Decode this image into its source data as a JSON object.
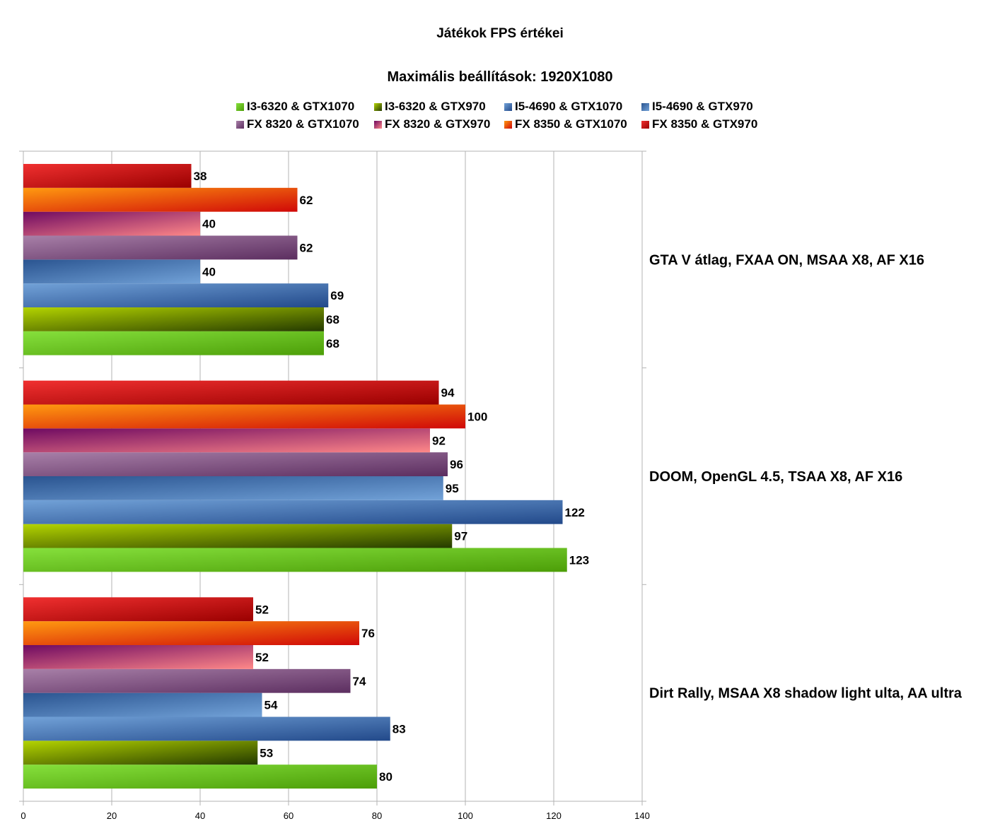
{
  "title": "Játékok FPS értékei",
  "subtitle": "Maximális beállítások: 1920X1080",
  "legend": [
    {
      "label": "I3-6320 & GTX1070",
      "color": "#6cc524"
    },
    {
      "label": "I3-6320 & GTX970",
      "color": "#6a8a00"
    },
    {
      "label": "I5-4690 & GTX1070",
      "color": "#4a78b8"
    },
    {
      "label": "I5-4690 & GTX970",
      "color": "#3c66a8"
    },
    {
      "label": "FX 8320 & GTX1070",
      "color": "#8a5a8a"
    },
    {
      "label": "FX 8320 & GTX970",
      "color": "#c02a6a"
    },
    {
      "label": "FX 8350 & GTX1070",
      "color": "#f06010"
    },
    {
      "label": "FX 8350 & GTX970",
      "color": "#d81818"
    }
  ],
  "chart_data": {
    "type": "bar",
    "orientation": "horizontal",
    "title": "Játékok FPS értékei",
    "subtitle": "Maximális beállítások: 1920X1080",
    "categories": [
      "GTA V átlag, FXAA ON, MSAA X8, AF X16",
      "DOOM, OpenGL 4.5, TSAA X8, AF X16",
      "Dirt Rally, MSAA X8 shadow light ulta, AA ultra"
    ],
    "xlim": [
      0,
      140
    ],
    "xticks": [
      0,
      20,
      40,
      60,
      80,
      100,
      120,
      140
    ],
    "grid": true,
    "legend_position": "top",
    "series": [
      {
        "name": "I3-6320 & GTX1070",
        "values": [
          68,
          123,
          80
        ],
        "colors": [
          "#86e03c",
          "#4c9e08"
        ]
      },
      {
        "name": "I3-6320 & GTX970",
        "values": [
          68,
          97,
          53
        ],
        "colors": [
          "#b4d400",
          "#243a00"
        ]
      },
      {
        "name": "I5-4690 & GTX1070",
        "values": [
          69,
          122,
          83
        ],
        "colors": [
          "#72a2d8",
          "#22498a"
        ]
      },
      {
        "name": "I5-4690 & GTX970",
        "values": [
          40,
          95,
          54
        ],
        "colors": [
          "#2a5490",
          "#72a2d8"
        ]
      },
      {
        "name": "FX 8320 & GTX1070",
        "values": [
          62,
          96,
          74
        ],
        "colors": [
          "#a880a8",
          "#5c2e60"
        ]
      },
      {
        "name": "FX 8320 & GTX970",
        "values": [
          40,
          92,
          52
        ],
        "colors": [
          "#6e0a62",
          "#ff8888"
        ]
      },
      {
        "name": "FX 8350 & GTX1070",
        "values": [
          62,
          100,
          76
        ],
        "colors": [
          "#ff9a10",
          "#d00808"
        ]
      },
      {
        "name": "FX 8350 & GTX970",
        "values": [
          38,
          94,
          52
        ],
        "colors": [
          "#f03030",
          "#9a0000"
        ]
      }
    ]
  }
}
